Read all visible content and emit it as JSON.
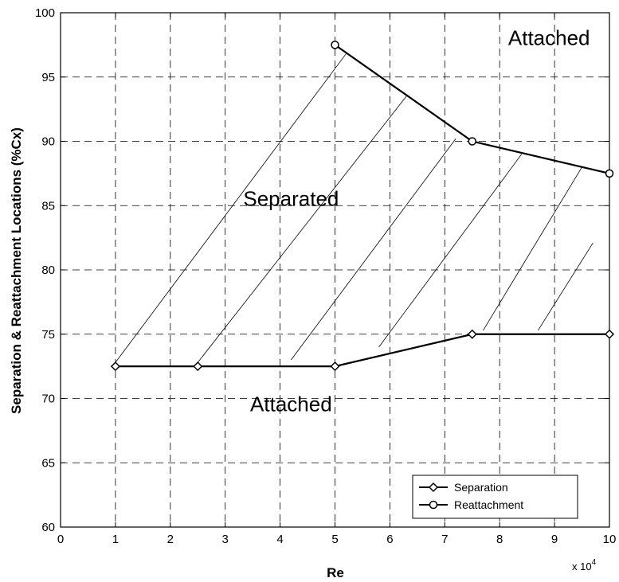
{
  "chart_data": {
    "type": "line",
    "title": "",
    "xlabel": "Re",
    "ylabel": "Separation & Reattachment Locations (%Cx)",
    "x_multiplier": {
      "base": "x 10",
      "exponent": "4"
    },
    "xlim": [
      0,
      10
    ],
    "ylim": [
      60,
      100
    ],
    "xticks": [
      "0",
      "1",
      "2",
      "3",
      "4",
      "5",
      "6",
      "7",
      "8",
      "9",
      "10"
    ],
    "yticks": [
      "60",
      "65",
      "70",
      "75",
      "80",
      "85",
      "90",
      "95",
      "100"
    ],
    "grid": true,
    "legend_position": "bottom-right",
    "series": [
      {
        "name": "Separation",
        "marker": "diamond",
        "points": [
          [
            1,
            72.5
          ],
          [
            2.5,
            72.5
          ],
          [
            5,
            72.5
          ],
          [
            7.5,
            75
          ],
          [
            10,
            75
          ]
        ]
      },
      {
        "name": "Reattachment",
        "marker": "circle",
        "points": [
          [
            5,
            97.5
          ],
          [
            7.5,
            90
          ],
          [
            10,
            87.5
          ]
        ]
      }
    ],
    "annotations": [
      {
        "text": "Attached",
        "x": 8.9,
        "y": 97.5
      },
      {
        "text": "Separated",
        "x": 4.2,
        "y": 85
      },
      {
        "text": "Attached",
        "x": 4.2,
        "y": 69
      }
    ],
    "hatch_lines": [
      [
        [
          1,
          72.8
        ],
        [
          5.2,
          96.8
        ]
      ],
      [
        [
          2.5,
          72.8
        ],
        [
          6.3,
          93.5
        ]
      ],
      [
        [
          4.2,
          73
        ],
        [
          7.2,
          90.2
        ]
      ],
      [
        [
          5.8,
          74
        ],
        [
          8.4,
          89.0
        ]
      ],
      [
        [
          7.7,
          75.3
        ],
        [
          9.5,
          88
        ]
      ],
      [
        [
          8.7,
          75.3
        ],
        [
          9.7,
          82.1
        ]
      ]
    ]
  }
}
